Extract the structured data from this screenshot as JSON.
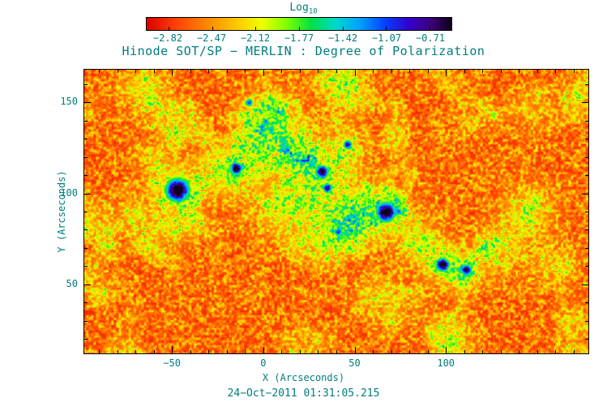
{
  "title": "Hinode SOT/SP − MERLIN : Degree of Polarization",
  "timestamp": "24−Oct−2011 01:31:05.215",
  "colorbar": {
    "label": "Log",
    "subscript": "10",
    "tick_labels": [
      "−2.82",
      "−2.47",
      "−2.12",
      "−1.77",
      "−1.42",
      "−1.07",
      "−0.71"
    ]
  },
  "axes": {
    "xlabel": "X (Arcseconds)",
    "ylabel": "Y (Arcseconds)",
    "x_tick_values": [
      -50,
      0,
      50,
      100
    ],
    "x_tick_labels": [
      "−50",
      "0",
      "50",
      "100"
    ],
    "y_tick_values": [
      50,
      100,
      150
    ],
    "y_tick_labels": [
      "50",
      "100",
      "150"
    ],
    "xlim": [
      -98,
      178
    ],
    "ylim": [
      12,
      168
    ],
    "minor_tick_step": 10,
    "text_color": "#007d7d",
    "frame_color": "#000000"
  },
  "chart_data": {
    "type": "heatmap",
    "title": "Hinode SOT/SP − MERLIN : Degree of Polarization",
    "xlabel": "X (Arcseconds)",
    "ylabel": "Y (Arcseconds)",
    "value_scale": "log10 degree of polarization",
    "value_range": [
      -2.82,
      -0.71
    ],
    "description": "Quiet-sun granulation appears red/orange (low polarization); magnetic network and plage appear green/cyan/blue; sunspot umbrae appear dark purple/black (high polarization).",
    "colormap_stops": [
      {
        "t": 0.0,
        "color": "#d80000"
      },
      {
        "t": 0.1,
        "color": "#ff4400"
      },
      {
        "t": 0.2,
        "color": "#ff8800"
      },
      {
        "t": 0.3,
        "color": "#ffcc00"
      },
      {
        "t": 0.38,
        "color": "#eeff00"
      },
      {
        "t": 0.46,
        "color": "#7dff00"
      },
      {
        "t": 0.54,
        "color": "#00e244"
      },
      {
        "t": 0.62,
        "color": "#00d8cc"
      },
      {
        "t": 0.7,
        "color": "#00a0ff"
      },
      {
        "t": 0.78,
        "color": "#0044ff"
      },
      {
        "t": 0.86,
        "color": "#3300cc"
      },
      {
        "t": 0.93,
        "color": "#3d0080"
      },
      {
        "t": 1.0,
        "color": "#0e0016"
      }
    ],
    "features": {
      "sunspots": [
        {
          "x": -47,
          "y": 102,
          "r": 5.5,
          "amp": 1.1
        },
        {
          "x": -15,
          "y": 114,
          "r": 2.8,
          "amp": 1.05
        },
        {
          "x": 32,
          "y": 112,
          "r": 3.0,
          "amp": 1.05
        },
        {
          "x": 35,
          "y": 103,
          "r": 2.2,
          "amp": 0.95
        },
        {
          "x": 46,
          "y": 127,
          "r": 2.2,
          "amp": 0.9
        },
        {
          "x": 67,
          "y": 90,
          "r": 4.5,
          "amp": 1.1
        },
        {
          "x": 98,
          "y": 61,
          "r": 3.2,
          "amp": 1.05
        },
        {
          "x": 111,
          "y": 58,
          "r": 2.6,
          "amp": 1.0
        },
        {
          "x": 41,
          "y": 79,
          "r": 2.0,
          "amp": 0.85
        },
        {
          "x": -8,
          "y": 150,
          "r": 2.0,
          "amp": 0.8
        }
      ],
      "plage": [
        {
          "x": -47,
          "y": 102,
          "s": 10,
          "amp": 0.55
        },
        {
          "x": -20,
          "y": 112,
          "s": 9,
          "amp": 0.5
        },
        {
          "x": -5,
          "y": 130,
          "s": 9,
          "amp": 0.45
        },
        {
          "x": 8,
          "y": 145,
          "s": 8,
          "amp": 0.45
        },
        {
          "x": 10,
          "y": 95,
          "s": 12,
          "amp": 0.5
        },
        {
          "x": 18,
          "y": 128,
          "s": 9,
          "amp": 0.5
        },
        {
          "x": 30,
          "y": 108,
          "s": 10,
          "amp": 0.55
        },
        {
          "x": 45,
          "y": 125,
          "s": 8,
          "amp": 0.5
        },
        {
          "x": 48,
          "y": 155,
          "s": 8,
          "amp": 0.4
        },
        {
          "x": 40,
          "y": 163,
          "s": 9,
          "amp": 0.4
        },
        {
          "x": 35,
          "y": 80,
          "s": 10,
          "amp": 0.45
        },
        {
          "x": 48,
          "y": 82,
          "s": 9,
          "amp": 0.5
        },
        {
          "x": 55,
          "y": 95,
          "s": 9,
          "amp": 0.5
        },
        {
          "x": 67,
          "y": 90,
          "s": 8,
          "amp": 0.55
        },
        {
          "x": 85,
          "y": 75,
          "s": 9,
          "amp": 0.45
        },
        {
          "x": 98,
          "y": 61,
          "s": 8,
          "amp": 0.5
        },
        {
          "x": 111,
          "y": 58,
          "s": 7,
          "amp": 0.5
        },
        {
          "x": 130,
          "y": 70,
          "s": 9,
          "amp": 0.4
        },
        {
          "x": 145,
          "y": 90,
          "s": 10,
          "amp": 0.4
        },
        {
          "x": 160,
          "y": 60,
          "s": 8,
          "amp": 0.35
        },
        {
          "x": 148,
          "y": 148,
          "s": 8,
          "amp": 0.3
        },
        {
          "x": -70,
          "y": 85,
          "s": 8,
          "amp": 0.35
        },
        {
          "x": -60,
          "y": 120,
          "s": 7,
          "amp": 0.3
        },
        {
          "x": -65,
          "y": 158,
          "s": 9,
          "amp": 0.45
        },
        {
          "x": 104,
          "y": 20,
          "s": 8,
          "amp": 0.35
        },
        {
          "x": 70,
          "y": 35,
          "s": 8,
          "amp": 0.3
        }
      ]
    }
  }
}
